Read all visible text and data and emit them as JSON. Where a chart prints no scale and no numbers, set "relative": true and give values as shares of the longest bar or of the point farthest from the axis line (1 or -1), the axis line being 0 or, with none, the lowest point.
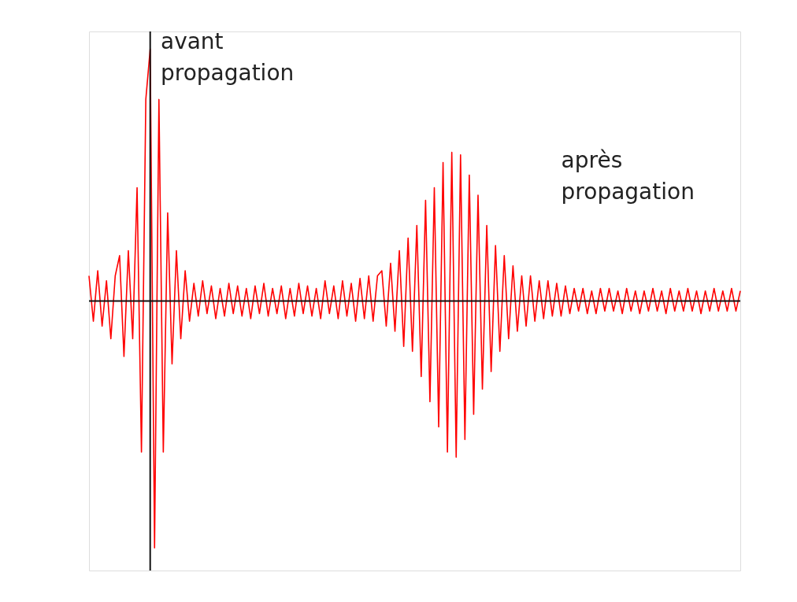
{
  "chart_data": {
    "type": "line",
    "relative": true,
    "categories": [
      null,
      null,
      null,
      null,
      null,
      null,
      null,
      null,
      null,
      null,
      null,
      null,
      null,
      null,
      null,
      null,
      null,
      null,
      null,
      null,
      null,
      null,
      null,
      null,
      null,
      null,
      null,
      null,
      null,
      null,
      null,
      null,
      null,
      null,
      null,
      null,
      null,
      null,
      null,
      null,
      null,
      null,
      null,
      null,
      null,
      null,
      null,
      null,
      null,
      null,
      null,
      null,
      null,
      null,
      null,
      null,
      null,
      null,
      null,
      null,
      null,
      null,
      null,
      null,
      null,
      null,
      null,
      null,
      null,
      null,
      null,
      null,
      null,
      null,
      null,
      null,
      null,
      null,
      null,
      null,
      null,
      null,
      null,
      null,
      null,
      null,
      null,
      null,
      null,
      null,
      null,
      null,
      null,
      null,
      null,
      null,
      null,
      null,
      null,
      null,
      null,
      null,
      null,
      null,
      null,
      null,
      null,
      null,
      null,
      null,
      null,
      null,
      null,
      null,
      null,
      null,
      null,
      null,
      null,
      null,
      null,
      null,
      null,
      null,
      null,
      null,
      null,
      null,
      null,
      null,
      null,
      null,
      null,
      null,
      null,
      null,
      null,
      null,
      null,
      null,
      null,
      null,
      null,
      null,
      null,
      null,
      null,
      null,
      null,
      null
    ],
    "series": [
      {
        "color": "#ff0000",
        "values": [
          0.1,
          -0.08,
          0.12,
          -0.1,
          0.08,
          -0.15,
          0.1,
          0.18,
          -0.22,
          0.2,
          -0.15,
          0.45,
          -0.6,
          0.8,
          1.0,
          -0.98,
          0.8,
          -0.6,
          0.35,
          -0.25,
          0.2,
          -0.15,
          0.12,
          -0.08,
          0.07,
          -0.06,
          0.08,
          -0.05,
          0.06,
          -0.07,
          0.05,
          -0.06,
          0.07,
          -0.05,
          0.06,
          -0.06,
          0.05,
          -0.07,
          0.06,
          -0.05,
          0.07,
          -0.06,
          0.05,
          -0.05,
          0.06,
          -0.07,
          0.05,
          -0.06,
          0.07,
          -0.05,
          0.06,
          -0.06,
          0.05,
          -0.07,
          0.08,
          -0.05,
          0.06,
          -0.07,
          0.08,
          -0.06,
          0.07,
          -0.08,
          0.09,
          -0.07,
          0.1,
          -0.08,
          0.1,
          0.12,
          -0.1,
          0.15,
          -0.12,
          0.2,
          -0.18,
          0.25,
          -0.2,
          0.3,
          -0.3,
          0.4,
          -0.4,
          0.45,
          -0.5,
          0.55,
          -0.6,
          0.59,
          -0.62,
          0.58,
          -0.55,
          0.5,
          -0.45,
          0.42,
          -0.35,
          0.3,
          -0.28,
          0.22,
          -0.2,
          0.18,
          -0.15,
          0.14,
          -0.12,
          0.1,
          -0.1,
          0.1,
          -0.08,
          0.08,
          -0.07,
          0.08,
          -0.06,
          0.07,
          -0.06,
          0.06,
          -0.05,
          0.05,
          -0.04,
          0.05,
          -0.05,
          0.04,
          -0.05,
          0.05,
          -0.04,
          0.05,
          -0.04,
          0.04,
          -0.05,
          0.05,
          -0.04,
          0.04,
          -0.05,
          0.04,
          -0.04,
          0.05,
          -0.04,
          0.04,
          -0.05,
          0.05,
          -0.04,
          0.04,
          -0.04,
          0.05,
          -0.04,
          0.04,
          -0.05,
          0.04,
          -0.04,
          0.05,
          -0.04,
          0.04,
          -0.04,
          0.05,
          -0.04,
          0.04
        ]
      }
    ],
    "annotations": [
      "avant propagation",
      "après propagation"
    ]
  }
}
